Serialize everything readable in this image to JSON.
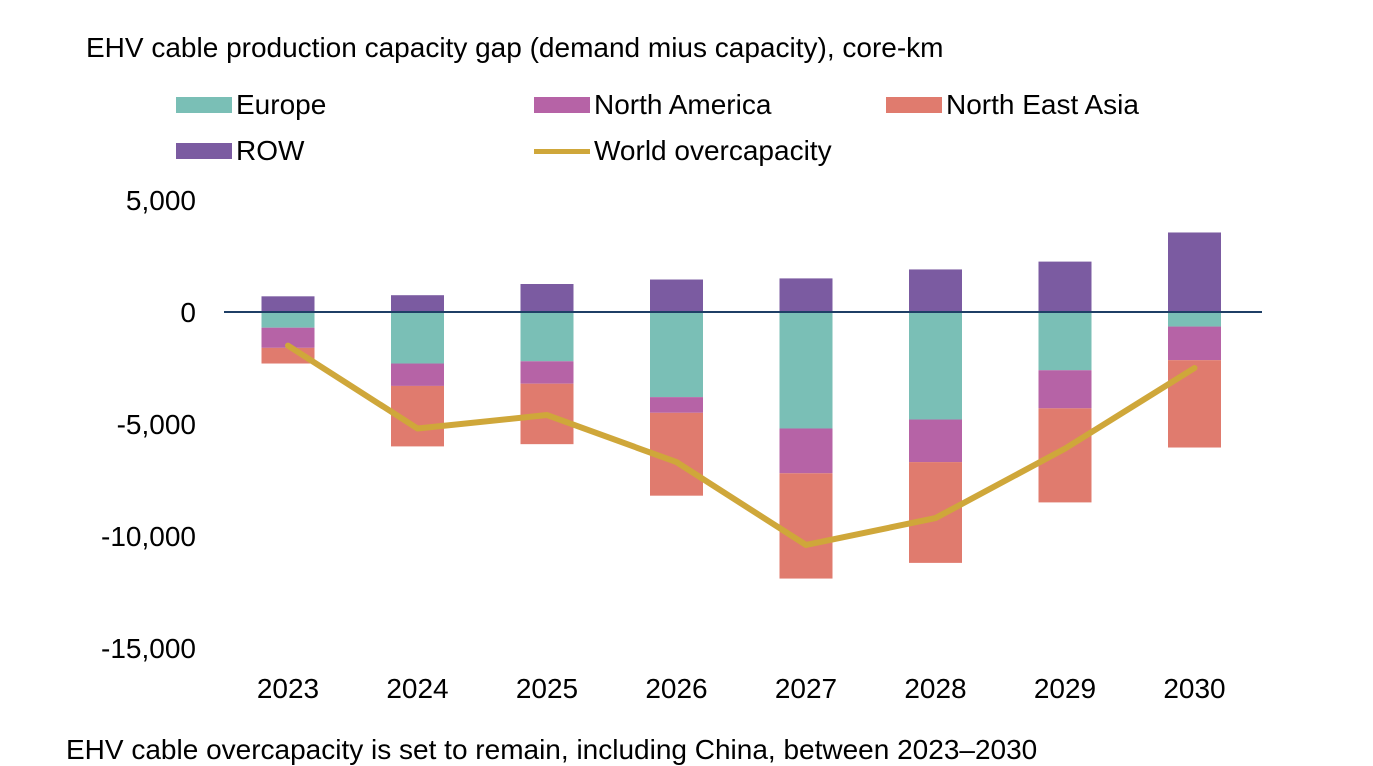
{
  "colors": {
    "europe": "#7abfb6",
    "north_america": "#b663a6",
    "north_east_asia": "#e07b6e",
    "row": "#7b5ba1",
    "world_overcapacity": "#cfa73a",
    "zero_line": "#1f3f66"
  },
  "chart_data": {
    "type": "bar",
    "stacked": true,
    "title": "EHV cable production capacity gap (demand mius capacity), core-km",
    "categories": [
      "2023",
      "2024",
      "2025",
      "2026",
      "2027",
      "2028",
      "2029",
      "2030"
    ],
    "series": [
      {
        "name": "Europe",
        "color_key": "europe",
        "values": [
          -700,
          -2300,
          -2200,
          -3800,
          -5200,
          -4800,
          -2600,
          -650
        ]
      },
      {
        "name": "North America",
        "color_key": "north_america",
        "values": [
          -900,
          -1000,
          -1000,
          -700,
          -2000,
          -1900,
          -1700,
          -1500
        ]
      },
      {
        "name": "North East Asia",
        "color_key": "north_east_asia",
        "values": [
          -700,
          -2700,
          -2700,
          -3700,
          -4700,
          -4500,
          -4200,
          -3900
        ]
      },
      {
        "name": "ROW",
        "color_key": "row",
        "values": [
          700,
          750,
          1250,
          1450,
          1500,
          1900,
          2250,
          3550
        ]
      }
    ],
    "line_series": {
      "name": "World overcapacity",
      "color_key": "world_overcapacity",
      "values": [
        -1500,
        -5200,
        -4600,
        -6700,
        -10400,
        -9200,
        -6100,
        -2500
      ]
    },
    "ylim": [
      -15000,
      5000
    ],
    "yticks": [
      5000,
      0,
      -5000,
      -10000,
      -15000
    ],
    "ytick_labels": [
      "5,000",
      "0",
      "-5,000",
      "-10,000",
      "-15,000"
    ],
    "legend": {
      "placement": "top",
      "items": [
        {
          "label": "Europe",
          "kind": "box",
          "color_key": "europe"
        },
        {
          "label": "North America",
          "kind": "box",
          "color_key": "north_america"
        },
        {
          "label": "North East Asia",
          "kind": "box",
          "color_key": "north_east_asia"
        },
        {
          "label": "ROW",
          "kind": "box",
          "color_key": "row"
        },
        {
          "label": "World overcapacity",
          "kind": "line",
          "color_key": "world_overcapacity"
        }
      ]
    },
    "caption": "EHV cable overcapacity is set to remain, including China, between 2023–2030"
  }
}
